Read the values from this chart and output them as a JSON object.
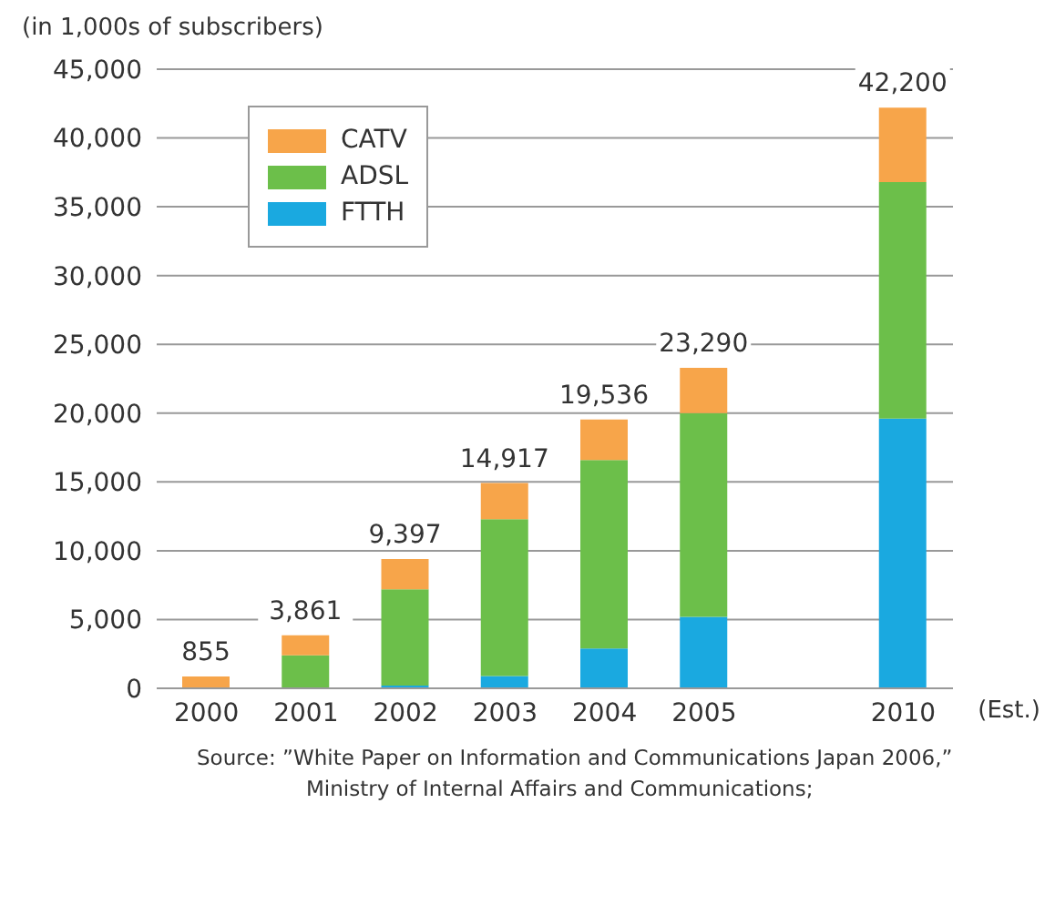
{
  "chart_data": {
    "type": "bar",
    "ylabel": "(in 1,000s of subscribers)",
    "xlabel": "(Est.)",
    "categories": [
      "2000",
      "2001",
      "2002",
      "2003",
      "2004",
      "2005",
      null,
      "2010"
    ],
    "stacked": true,
    "series": [
      {
        "name": "FTTH",
        "color": "#1aa9e0",
        "values": [
          0,
          0,
          200,
          900,
          2900,
          5200,
          null,
          19600
        ]
      },
      {
        "name": "ADSL",
        "color": "#6cbf4a",
        "values": [
          0,
          2400,
          7000,
          11400,
          13700,
          14800,
          null,
          17200
        ]
      },
      {
        "name": "CATV",
        "color": "#f7a54a",
        "values": [
          855,
          1461,
          2197,
          2617,
          2936,
          3290,
          null,
          5400
        ]
      }
    ],
    "totals": [
      "855",
      "3,861",
      "9,397",
      "14,917",
      "19,536",
      "23,290",
      null,
      "42,200"
    ],
    "ylim": [
      0,
      45000
    ],
    "yticks": [
      {
        "value": 0,
        "label": "0"
      },
      {
        "value": 5000,
        "label": "5,000"
      },
      {
        "value": 10000,
        "label": "10,000"
      },
      {
        "value": 15000,
        "label": "15,000"
      },
      {
        "value": 20000,
        "label": "20,000"
      },
      {
        "value": 25000,
        "label": "25,000"
      },
      {
        "value": 30000,
        "label": "30,000"
      },
      {
        "value": 35000,
        "label": "35,000"
      },
      {
        "value": 40000,
        "label": "40,000"
      },
      {
        "value": 45000,
        "label": "45,000"
      }
    ],
    "grid": "y",
    "legend": "top left",
    "annotations": [
      "Source: ”White Paper on Information and Communications Japan 2006,”",
      "Ministry of Internal Affairs and Communications;"
    ]
  }
}
